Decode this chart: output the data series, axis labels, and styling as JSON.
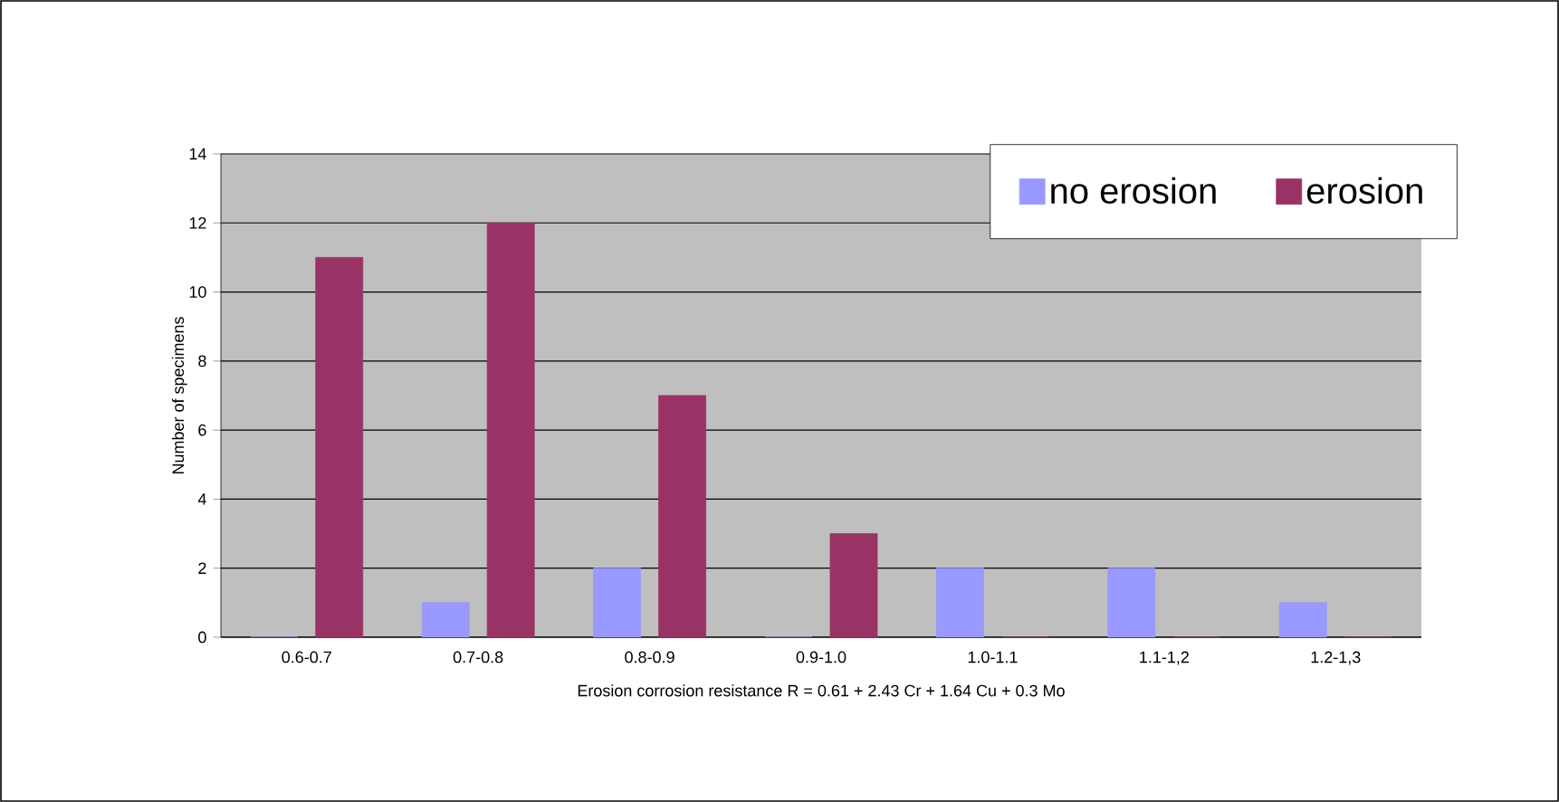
{
  "chart_data": {
    "type": "bar",
    "xlabel": "Erosion corrosion resistance R = 0.61 + 2.43 Cr + 1.64 Cu + 0.3 Mo",
    "ylabel": "Number of specimens",
    "categories": [
      "0.6-0.7",
      "0.7-0.8",
      "0.8-0.9",
      "0.9-1.0",
      "1.0-1.1",
      "1.1-1,2",
      "1.2-1,3"
    ],
    "series": [
      {
        "name": "no erosion",
        "color": "#9999ff",
        "values": [
          0,
          1,
          2,
          0,
          2,
          2,
          1
        ]
      },
      {
        "name": "erosion",
        "color": "#993366",
        "values": [
          11,
          12,
          7,
          3,
          0,
          0,
          0
        ]
      }
    ],
    "ylim": [
      0,
      14
    ],
    "yticks": [
      0,
      2,
      4,
      6,
      8,
      10,
      12,
      14
    ],
    "grid": "y",
    "legend": "top right"
  }
}
